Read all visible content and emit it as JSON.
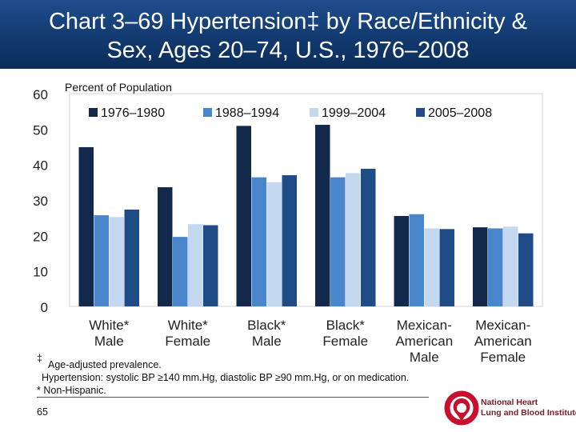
{
  "title": {
    "line1": "Chart 3–69 Hypertension‡ by Race/Ethnicity &",
    "line2": "Sex, Ages 20–74, U.S., 1976–2008"
  },
  "chart_data": {
    "type": "bar",
    "ylabel": "Percent of Population",
    "ylim": [
      0,
      60
    ],
    "yticks": [
      "0",
      "10",
      "20",
      "30",
      "40",
      "50",
      "60"
    ],
    "grid": false,
    "legend_position": "top",
    "categories": [
      [
        "White*",
        "Male"
      ],
      [
        "White*",
        "Female"
      ],
      [
        "Black*",
        "Male"
      ],
      [
        "Black*",
        "Female"
      ],
      [
        "Mexican-",
        "American",
        "Male"
      ],
      [
        "Mexican-",
        "American",
        "Female"
      ]
    ],
    "series": [
      {
        "name": "1976–1980",
        "color": "#13294b",
        "values": [
          44.9,
          33.6,
          50.9,
          51.2,
          25.5,
          22.3
        ]
      },
      {
        "name": "1988–1994",
        "color": "#4a86cc",
        "values": [
          25.7,
          19.6,
          36.4,
          36.4,
          26.0,
          22.0
        ]
      },
      {
        "name": "1999–2004",
        "color": "#c4d8f0",
        "values": [
          25.2,
          23.2,
          35.0,
          37.6,
          22.0,
          22.5
        ]
      },
      {
        "name": "2005–2008",
        "color": "#1f4b87",
        "values": [
          27.3,
          22.9,
          37.0,
          38.8,
          21.8,
          20.6
        ]
      }
    ]
  },
  "footnotes": {
    "dagger_mark": "‡",
    "dagger_text": "Age-adjusted prevalence.",
    "hypertension_def": "Hypertension: systolic BP ≥140 mm.Hg, diastolic BP ≥90 mm.Hg, or on medication.",
    "nonhispanic": "* Non-Hispanic."
  },
  "page_number": "65",
  "logo": {
    "line1": "National Heart",
    "line2": "Lung and Blood Institute",
    "color": "#c8102e"
  }
}
